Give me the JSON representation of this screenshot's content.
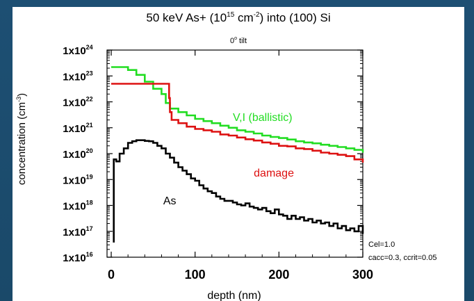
{
  "chart_data": {
    "type": "line",
    "title": "50 keV As+ (10¹⁵ cm⁻²) into (100) Si",
    "title_parts": {
      "pre": "50 keV As+ (10",
      "sup1": "15",
      "mid": " cm",
      "sup2": "-2",
      "post": ") into (100) Si"
    },
    "subtitle": "0° tilt",
    "subtitle_parts": {
      "pre": "0",
      "sup": "o",
      "post": " tilt"
    },
    "xlabel": "depth (nm)",
    "ylabel": "concentration (cm⁻³)",
    "ylabel_parts": {
      "pre": "concentration (cm",
      "sup": "-3",
      "post": ")"
    },
    "xlim": [
      -5,
      300
    ],
    "ylim": [
      1e+16,
      1e+24
    ],
    "y_scale": "log",
    "xticks": [
      0,
      100,
      200,
      300
    ],
    "yticks": [
      {
        "value": 1e+16,
        "mant": "1x10",
        "exp": "16"
      },
      {
        "value": 1e+17,
        "mant": "1x10",
        "exp": "17"
      },
      {
        "value": 1e+18,
        "mant": "1x10",
        "exp": "18"
      },
      {
        "value": 1e+19,
        "mant": "1x10",
        "exp": "19"
      },
      {
        "value": 1e+20,
        "mant": "1x10",
        "exp": "20"
      },
      {
        "value": 1e+21,
        "mant": "1x10",
        "exp": "21"
      },
      {
        "value": 1e+22,
        "mant": "1x10",
        "exp": "22"
      },
      {
        "value": 1e+23,
        "mant": "1x10",
        "exp": "23"
      },
      {
        "value": 1e+24,
        "mant": "1x10",
        "exp": "24"
      }
    ],
    "grid": false,
    "series": [
      {
        "name": "V,I (ballistic)",
        "color": "#22dd22",
        "points": [
          [
            0,
            2.2e+23
          ],
          [
            10,
            2.2e+23
          ],
          [
            20,
            1.7e+23
          ],
          [
            30,
            1.1e+23
          ],
          [
            40,
            6e+22
          ],
          [
            50,
            3.2e+22
          ],
          [
            60,
            2e+22
          ],
          [
            65,
            9e+21
          ],
          [
            70,
            5.5e+21
          ],
          [
            80,
            4e+21
          ],
          [
            90,
            3e+21
          ],
          [
            100,
            2.2e+21
          ],
          [
            110,
            1.8e+21
          ],
          [
            120,
            1.5e+21
          ],
          [
            130,
            1.2e+21
          ],
          [
            140,
            1e+21
          ],
          [
            150,
            8e+20
          ],
          [
            160,
            7e+20
          ],
          [
            170,
            6e+20
          ],
          [
            180,
            5e+20
          ],
          [
            190,
            4.4e+20
          ],
          [
            200,
            4e+20
          ],
          [
            210,
            3.5e+20
          ],
          [
            220,
            3e+20
          ],
          [
            230,
            2.7e+20
          ],
          [
            240,
            2.5e+20
          ],
          [
            250,
            2.2e+20
          ],
          [
            260,
            2e+20
          ],
          [
            270,
            1.8e+20
          ],
          [
            280,
            1.6e+20
          ],
          [
            290,
            1.4e+20
          ],
          [
            300,
            1.1e+20
          ]
        ]
      },
      {
        "name": "damage",
        "color": "#dd1111",
        "points": [
          [
            0,
            5e+22
          ],
          [
            69,
            5e+22
          ],
          [
            69,
            1.4e+22
          ],
          [
            70,
            4e+21
          ],
          [
            72,
            2e+21
          ],
          [
            80,
            1.5e+21
          ],
          [
            90,
            1.1e+21
          ],
          [
            100,
            9e+20
          ],
          [
            110,
            8e+20
          ],
          [
            120,
            7e+20
          ],
          [
            130,
            5.5e+20
          ],
          [
            140,
            5e+20
          ],
          [
            150,
            4.2e+20
          ],
          [
            160,
            3.6e+20
          ],
          [
            170,
            3.2e+20
          ],
          [
            180,
            2.7e+20
          ],
          [
            190,
            2.4e+20
          ],
          [
            200,
            2e+20
          ],
          [
            210,
            1.9e+20
          ],
          [
            220,
            1.6e+20
          ],
          [
            230,
            1.5e+20
          ],
          [
            240,
            1.3e+20
          ],
          [
            250,
            1.1e+20
          ],
          [
            260,
            1e+20
          ],
          [
            270,
            9e+19
          ],
          [
            280,
            8e+19
          ],
          [
            290,
            6e+19
          ],
          [
            300,
            4.5e+19
          ]
        ]
      },
      {
        "name": "As",
        "color": "#000000",
        "points": [
          [
            2,
            4e+16
          ],
          [
            3,
            6e+19
          ],
          [
            6,
            5e+19
          ],
          [
            10,
            1e+20
          ],
          [
            15,
            1.6e+20
          ],
          [
            20,
            2.6e+20
          ],
          [
            25,
            3e+20
          ],
          [
            30,
            3.3e+20
          ],
          [
            35,
            3.3e+20
          ],
          [
            40,
            3.1e+20
          ],
          [
            45,
            3e+20
          ],
          [
            50,
            2.6e+20
          ],
          [
            55,
            2e+20
          ],
          [
            60,
            1.6e+20
          ],
          [
            65,
            1e+20
          ],
          [
            70,
            7e+19
          ],
          [
            75,
            4.5e+19
          ],
          [
            80,
            3e+19
          ],
          [
            85,
            2.2e+19
          ],
          [
            90,
            1.6e+19
          ],
          [
            95,
            1.1e+19
          ],
          [
            100,
            9e+18
          ],
          [
            105,
            6e+18
          ],
          [
            110,
            4.5e+18
          ],
          [
            115,
            3.5e+18
          ],
          [
            120,
            3e+18
          ],
          [
            125,
            2.2e+18
          ],
          [
            130,
            1.8e+18
          ],
          [
            135,
            1.5e+18
          ],
          [
            140,
            1.5e+18
          ],
          [
            145,
            1.3e+18
          ],
          [
            150,
            1.1e+18
          ],
          [
            155,
            1e+18
          ],
          [
            160,
            1.2e+18
          ],
          [
            165,
            9e+17
          ],
          [
            170,
            8e+17
          ],
          [
            175,
            7e+17
          ],
          [
            180,
            8e+17
          ],
          [
            185,
            6e+17
          ],
          [
            190,
            5e+17
          ],
          [
            195,
            7e+17
          ],
          [
            200,
            4.5e+17
          ],
          [
            205,
            4e+17
          ],
          [
            210,
            3e+17
          ],
          [
            215,
            4e+17
          ],
          [
            220,
            3e+17
          ],
          [
            225,
            3.5e+17
          ],
          [
            230,
            2.6e+17
          ],
          [
            235,
            3e+17
          ],
          [
            240,
            2.2e+17
          ],
          [
            245,
            2.6e+17
          ],
          [
            250,
            2e+17
          ],
          [
            255,
            2.2e+17
          ],
          [
            260,
            1.6e+17
          ],
          [
            265,
            2e+17
          ],
          [
            270,
            1.3e+17
          ],
          [
            275,
            1.6e+17
          ],
          [
            280,
            1.1e+17
          ],
          [
            285,
            1.3e+17
          ],
          [
            290,
            1e+17
          ],
          [
            295,
            1.6e+17
          ],
          [
            300,
            8e+16
          ]
        ]
      }
    ],
    "annotations": [
      {
        "text": "V,I (ballistic)",
        "color": "#22dd22",
        "x": 145,
        "y": 1.8e+21
      },
      {
        "text": "damage",
        "color": "#dd1111",
        "x": 170,
        "y": 1.3e+19
      },
      {
        "text": "As",
        "color": "#000000",
        "x": 62,
        "y": 1.1e+18
      }
    ],
    "notes": [
      "Cel=1.0",
      "cacc=0.3, ccrit=0.05"
    ]
  }
}
